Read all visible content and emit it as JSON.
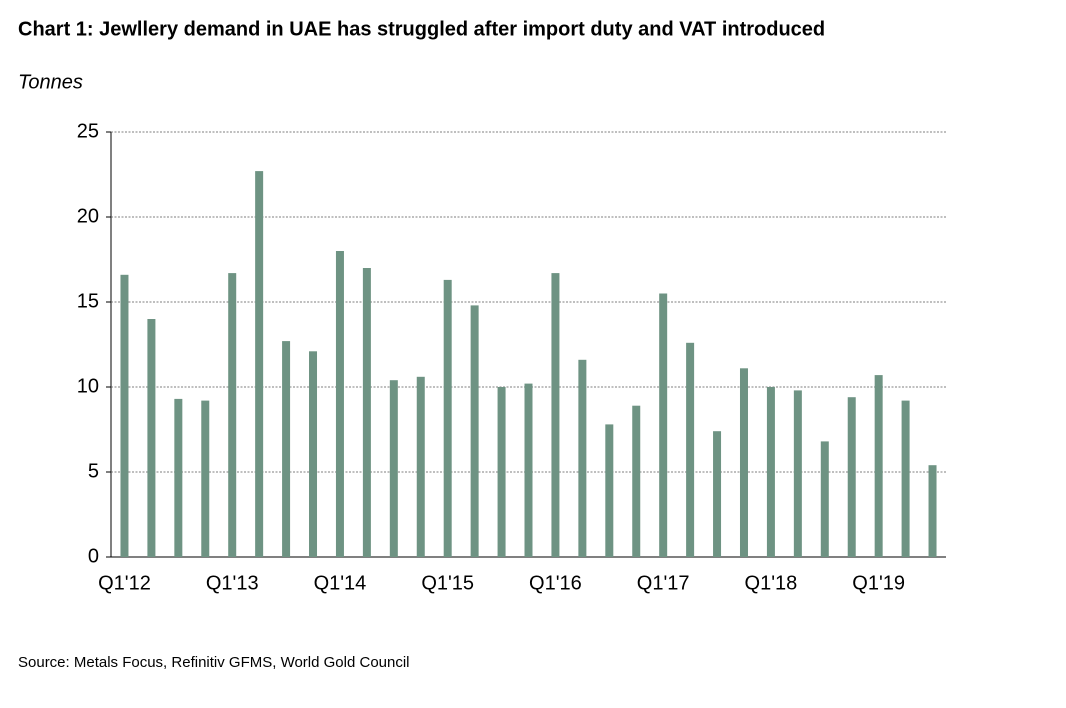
{
  "chart_data": {
    "type": "bar",
    "title": "Chart 1: Jewllery demand in UAE has struggled after import duty and VAT introduced",
    "y_label": "Tonnes",
    "source": "Source: Metals Focus, Refinitiv GFMS, World Gold Council",
    "categories": [
      "Q1'12",
      null,
      null,
      null,
      "Q1'13",
      null,
      null,
      null,
      "Q1'14",
      null,
      null,
      null,
      "Q1'15",
      null,
      null,
      null,
      "Q1'16",
      null,
      null,
      null,
      "Q1'17",
      null,
      null,
      null,
      "Q1'18",
      null,
      null,
      null,
      "Q1'19",
      null,
      null
    ],
    "values": [
      16.6,
      14.0,
      9.3,
      9.2,
      16.7,
      22.7,
      12.7,
      12.1,
      18.0,
      17.0,
      10.4,
      10.6,
      16.3,
      14.8,
      10.0,
      10.2,
      16.7,
      11.6,
      7.8,
      8.9,
      15.5,
      12.6,
      7.4,
      11.1,
      10.0,
      9.8,
      6.8,
      9.4,
      10.7,
      9.2,
      5.4
    ],
    "color": "#6e9383",
    "ylim": [
      0,
      25
    ],
    "yticks": [
      0,
      5,
      10,
      15,
      20,
      25
    ],
    "grid": true
  }
}
